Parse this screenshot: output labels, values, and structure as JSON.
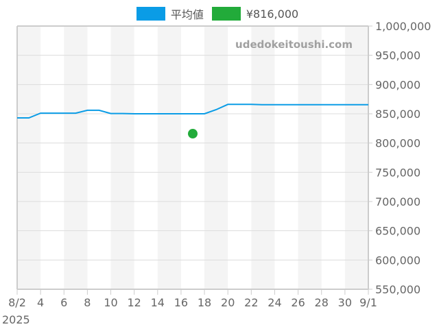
{
  "legend": {
    "items": [
      {
        "label": "平均値",
        "color": "#0a9ce6"
      },
      {
        "label": "¥816,000",
        "color": "#22ab3a"
      }
    ]
  },
  "watermark": "udedokeitoushi.com",
  "chart_data": {
    "type": "line",
    "title": "",
    "xlabel": "",
    "ylabel": "",
    "x_tick_labels": [
      "8/2",
      "4",
      "6",
      "8",
      "10",
      "12",
      "14",
      "16",
      "18",
      "20",
      "22",
      "24",
      "26",
      "28",
      "30",
      "9/1"
    ],
    "x_year_label": "2025",
    "y_tick_labels": [
      "1,000,000",
      "950,000",
      "900,000",
      "850,000",
      "800,000",
      "750,000",
      "700,000",
      "650,000",
      "600,000",
      "550,000"
    ],
    "ylim": [
      550000,
      1000000
    ],
    "grid": true,
    "legend_position": "top",
    "series": [
      {
        "name": "平均値",
        "color": "#0a9ce6",
        "type": "line",
        "x": [
          "8/2",
          "8/3",
          "8/4",
          "8/5",
          "8/6",
          "8/7",
          "8/8",
          "8/9",
          "8/10",
          "8/11",
          "8/12",
          "8/13",
          "8/14",
          "8/15",
          "8/16",
          "8/17",
          "8/18",
          "8/19",
          "8/20",
          "8/21",
          "8/22",
          "8/23",
          "8/24",
          "8/25",
          "8/26",
          "8/27",
          "8/28",
          "8/29",
          "8/30",
          "8/31",
          "9/1"
        ],
        "values": [
          843000,
          843000,
          851000,
          851000,
          851000,
          851000,
          856000,
          856000,
          850500,
          850500,
          850000,
          850000,
          850000,
          850000,
          850000,
          850000,
          850000,
          857000,
          866000,
          866000,
          866000,
          865500,
          865500,
          865500,
          865500,
          865500,
          865500,
          865500,
          865500,
          865500,
          865500
        ]
      },
      {
        "name": "¥816,000",
        "color": "#22ab3a",
        "type": "scatter",
        "x": [
          "8/17"
        ],
        "values": [
          816000
        ]
      }
    ]
  }
}
